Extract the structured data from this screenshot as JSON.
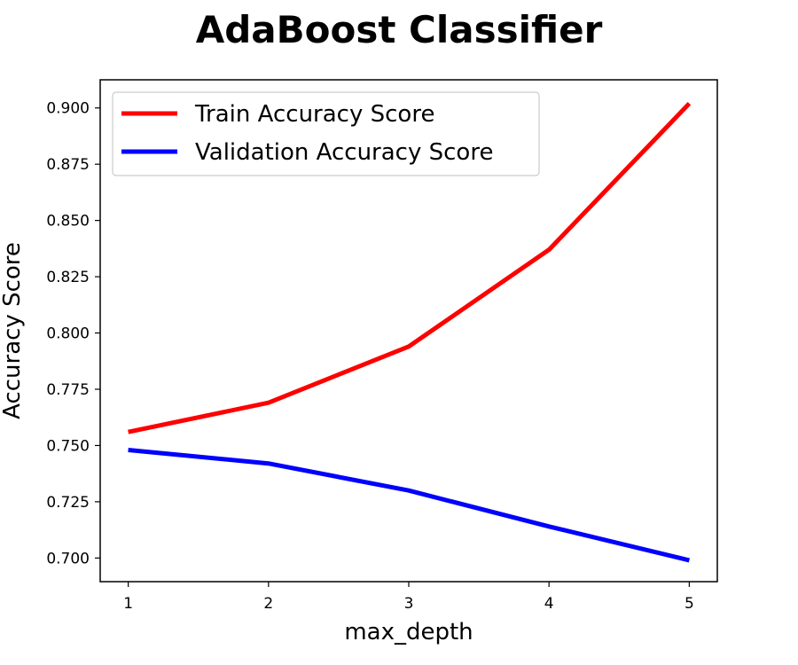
{
  "chart_data": {
    "type": "line",
    "title": "AdaBoost Classifier",
    "xlabel": "max_depth",
    "ylabel": "Accuracy Score",
    "x": [
      1,
      2,
      3,
      4,
      5
    ],
    "xticks": [
      "1",
      "2",
      "3",
      "4",
      "5"
    ],
    "yticks": [
      "0.700",
      "0.725",
      "0.750",
      "0.775",
      "0.800",
      "0.825",
      "0.850",
      "0.875",
      "0.900"
    ],
    "ytick_values": [
      0.7,
      0.725,
      0.75,
      0.775,
      0.8,
      0.825,
      0.85,
      0.875,
      0.9
    ],
    "xlim": [
      0.8,
      5.2
    ],
    "ylim": [
      0.6895,
      0.9125
    ],
    "grid": false,
    "legend_position": "upper-left",
    "series": [
      {
        "name": "Train Accuracy Score",
        "color": "#ff0000",
        "values": [
          0.756,
          0.769,
          0.794,
          0.837,
          0.902
        ]
      },
      {
        "name": "Validation Accuracy Score",
        "color": "#0000ff",
        "values": [
          0.748,
          0.742,
          0.73,
          0.714,
          0.699
        ]
      }
    ]
  }
}
